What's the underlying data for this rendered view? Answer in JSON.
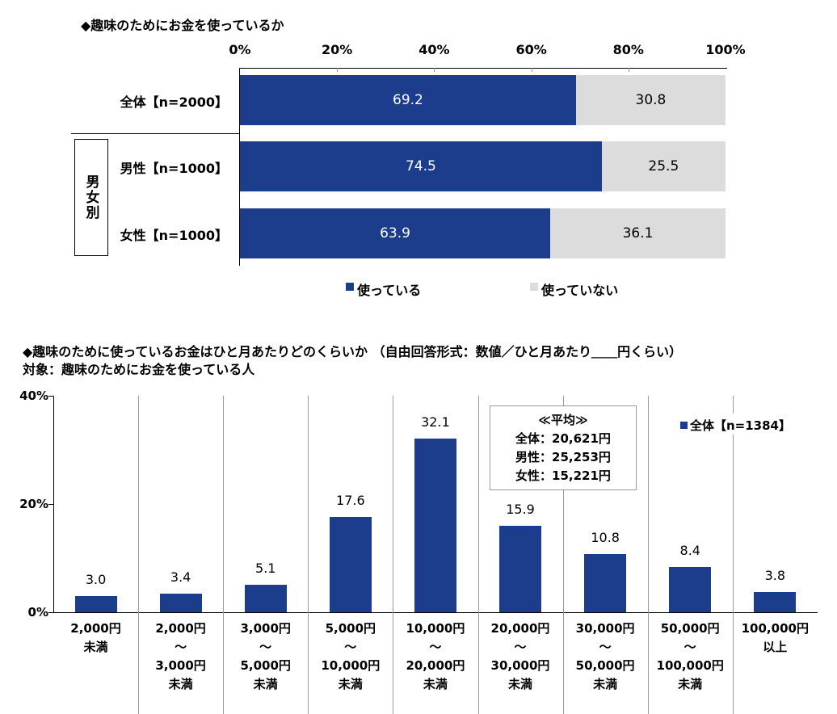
{
  "chart_data": [
    {
      "type": "bar",
      "orientation": "horizontal-stacked",
      "title": "◆趣味のためにお金を使っているか",
      "xlim": [
        0,
        100
      ],
      "tick_labels": [
        "0%",
        "20%",
        "40%",
        "60%",
        "80%",
        "100%"
      ],
      "categories": [
        "全体【n=2000】",
        "男性【n=1000】",
        "女性【n=1000】"
      ],
      "group_label": "男女別",
      "series": [
        {
          "name": "使っている",
          "values": [
            69.2,
            74.5,
            63.9
          ],
          "labels": [
            "69.2",
            "74.5",
            "63.9"
          ],
          "color": "#1c3c8c"
        },
        {
          "name": "使っていない",
          "values": [
            30.8,
            25.5,
            36.1
          ],
          "labels": [
            "30.8",
            "25.5",
            "36.1"
          ],
          "color": "#dcdcdc"
        }
      ],
      "legend": "bottom"
    },
    {
      "type": "bar",
      "title": "◆趣味のために使っているお金はひと月あたりどのくらいか （自由回答形式：数値／ひと月あたり＿＿円くらい）",
      "subtitle": "対象：趣味のためにお金を使っている人",
      "ylim": [
        0,
        40
      ],
      "tick_labels": [
        "0%",
        "20%",
        "40%"
      ],
      "categories": [
        [
          "2,000円",
          "未満"
        ],
        [
          "2,000円",
          "～",
          "3,000円",
          "未満"
        ],
        [
          "3,000円",
          "～",
          "5,000円",
          "未満"
        ],
        [
          "5,000円",
          "～",
          "10,000円",
          "未満"
        ],
        [
          "10,000円",
          "～",
          "20,000円",
          "未満"
        ],
        [
          "20,000円",
          "～",
          "30,000円",
          "未満"
        ],
        [
          "30,000円",
          "～",
          "50,000円",
          "未満"
        ],
        [
          "50,000円",
          "～",
          "100,000円",
          "未満"
        ],
        [
          "100,000円",
          "以上"
        ]
      ],
      "series": [
        {
          "name": "全体【n=1384】",
          "values": [
            3.0,
            3.4,
            5.1,
            17.6,
            32.1,
            15.9,
            10.8,
            8.4,
            3.8
          ],
          "labels": [
            "3.0",
            "3.4",
            "5.1",
            "17.6",
            "32.1",
            "15.9",
            "10.8",
            "8.4",
            "3.8"
          ],
          "color": "#1c3c8c"
        }
      ],
      "legend": "top-right",
      "annotation": {
        "title": "≪平均≫",
        "lines": [
          "全体：20,621円",
          "男性：25,253円",
          "女性：15,221円"
        ]
      }
    }
  ]
}
